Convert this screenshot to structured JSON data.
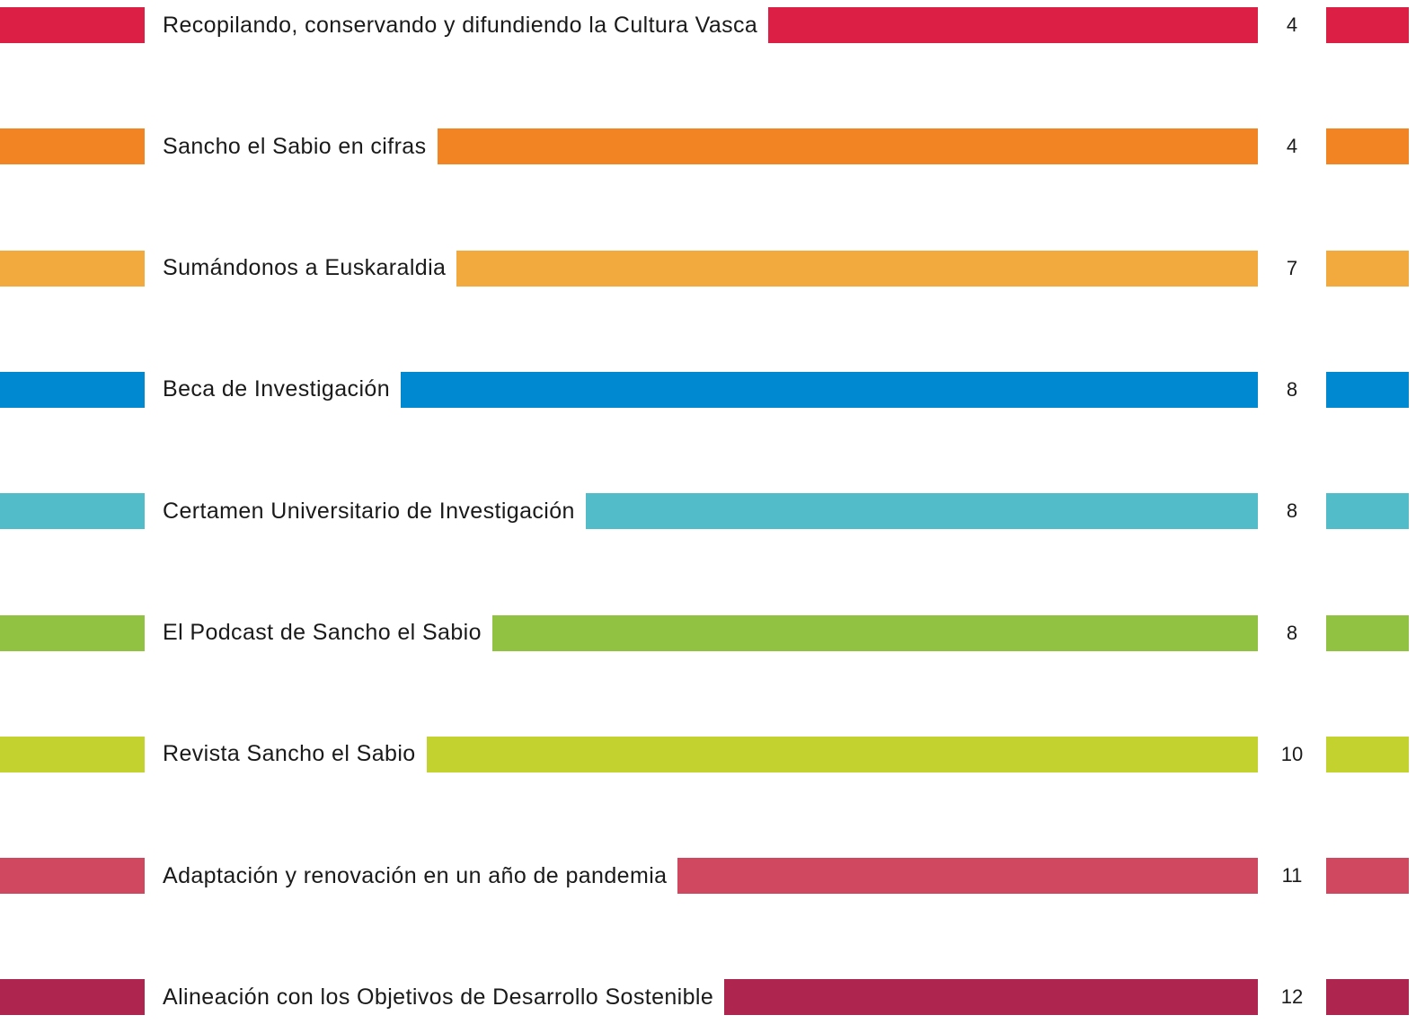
{
  "toc": {
    "items": [
      {
        "title": "Recopilando, conservando y difundiendo la Cultura Vasca",
        "page": 4,
        "color": "#db1f45"
      },
      {
        "title": "Sancho el Sabio en cifras",
        "page": 4,
        "color": "#f28423"
      },
      {
        "title": "Sumándonos a Euskaraldia",
        "page": 7,
        "color": "#f2a93e"
      },
      {
        "title": "Beca de Investigación",
        "page": 8,
        "color": "#0089d0"
      },
      {
        "title": "Certamen Universitario de Investigación",
        "page": 8,
        "color": "#52bcc8"
      },
      {
        "title": "El Podcast de Sancho el Sabio",
        "page": 8,
        "color": "#92c241"
      },
      {
        "title": "Revista Sancho el Sabio",
        "page": 10,
        "color": "#c3d22e"
      },
      {
        "title": "Adaptación y renovación en un año de pandemia",
        "page": 11,
        "color": "#cf4860"
      },
      {
        "title": "Alineación con los Objetivos de Desarrollo Sostenible",
        "page": 12,
        "color": "#ae254f"
      }
    ]
  }
}
